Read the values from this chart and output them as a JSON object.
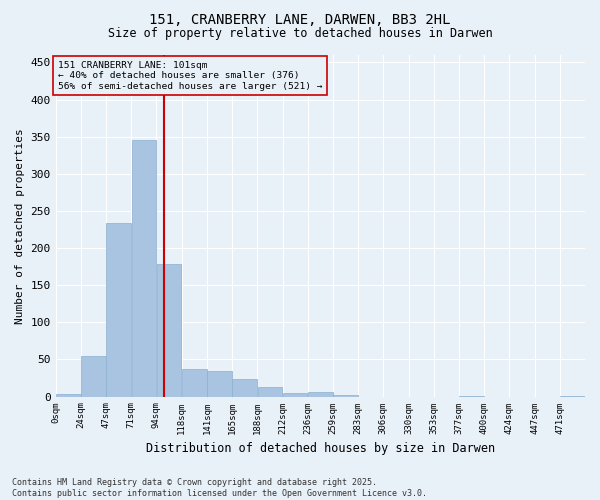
{
  "title_line1": "151, CRANBERRY LANE, DARWEN, BB3 2HL",
  "title_line2": "Size of property relative to detached houses in Darwen",
  "xlabel": "Distribution of detached houses by size in Darwen",
  "ylabel": "Number of detached properties",
  "bar_color": "#a8c4e0",
  "bar_edge_color": "#8ab0d0",
  "property_line_color": "#cc0000",
  "property_value": 101,
  "annotation_text": "151 CRANBERRY LANE: 101sqm\n← 40% of detached houses are smaller (376)\n56% of semi-detached houses are larger (521) →",
  "bin_width": 23.5,
  "bar_heights": [
    3,
    55,
    234,
    345,
    178,
    37,
    35,
    23,
    13,
    5,
    6,
    2,
    0,
    0,
    0,
    0,
    1,
    0,
    0,
    0,
    1
  ],
  "bin_labels": [
    "0sqm",
    "24sqm",
    "47sqm",
    "71sqm",
    "94sqm",
    "118sqm",
    "141sqm",
    "165sqm",
    "188sqm",
    "212sqm",
    "236sqm",
    "259sqm",
    "283sqm",
    "306sqm",
    "330sqm",
    "353sqm",
    "377sqm",
    "400sqm",
    "424sqm",
    "447sqm",
    "471sqm"
  ],
  "ylim": [
    0,
    460
  ],
  "yticks": [
    0,
    50,
    100,
    150,
    200,
    250,
    300,
    350,
    400,
    450
  ],
  "background_color": "#e8f0f8",
  "grid_color": "#ffffff",
  "footer_text": "Contains HM Land Registry data © Crown copyright and database right 2025.\nContains public sector information licensed under the Open Government Licence v3.0."
}
